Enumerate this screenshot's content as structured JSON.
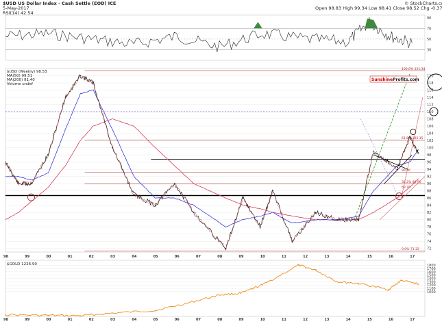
{
  "header": {
    "title": "$USD US Dollar Index - Cash Settle (EOD) ICE",
    "date": "5-May-2017",
    "rsi_legend": "RSI(14) 42.54",
    "open": "Open 98.83",
    "high": "High 99.34",
    "low": "Low 98.41",
    "close": "Close 98.52",
    "chg": "Chg -0.37 (-0.37%)",
    "credit": "© StockCharts.com"
  },
  "watermark": {
    "left": "Sunshine",
    "right": "Profits",
    "suffix": ".com"
  },
  "main_legend": [
    "$USD (Weekly) 98.53",
    "MA(50) 99.51",
    "MA(200) 91.40",
    "Volume undef"
  ],
  "gold_legend": "$GOLD 1226.90",
  "fib_labels": {
    "top": "100.0% 121.34",
    "f618": "61.8% 102.15",
    "f382": "38.2% 89.90",
    "bottom": "0.0% 71.32",
    "mid": "90.86",
    "val": "89.78"
  },
  "x_year_labels": [
    "98",
    "99",
    "00",
    "01",
    "02",
    "03",
    "04",
    "05",
    "06",
    "07",
    "08",
    "09",
    "10",
    "11",
    "12",
    "13",
    "14",
    "15",
    "16",
    "17"
  ],
  "colors": {
    "price": "#222222",
    "ma50": "#3b3bd6",
    "ma200": "#d83a5a",
    "gold": "#f08a1a",
    "rsi": "#222222",
    "rsi_fill": "#3f8a3f",
    "grid": "#d9d9d9"
  },
  "chart_data": [
    {
      "type": "line",
      "title": "RSI(14)",
      "x": [
        1998,
        2000,
        2002,
        2004,
        2006,
        2008,
        2010,
        2012,
        2014,
        2015,
        2016,
        2017
      ],
      "series": [
        {
          "values": [
            55,
            60,
            50,
            40,
            55,
            35,
            60,
            50,
            45,
            82,
            55,
            42.54
          ]
        }
      ],
      "yticks": [
        30,
        50,
        70,
        90
      ],
      "ylim": [
        10,
        95
      ]
    },
    {
      "type": "line",
      "title": "$USD (Weekly) 98.53",
      "x": [
        1998,
        1998.6,
        1999.2,
        2000,
        2000.8,
        2001.5,
        2002.1,
        2003,
        2004,
        2005,
        2005.9,
        2006.8,
        2008.3,
        2009.1,
        2009.9,
        2010.5,
        2011.4,
        2012.5,
        2013.5,
        2014.5,
        2015.2,
        2016.3,
        2016.9,
        2017.3
      ],
      "series": [
        {
          "name": "$USD",
          "values": [
            96,
            90,
            90,
            98,
            114,
            120,
            118,
            100,
            87,
            84,
            90,
            82,
            72,
            86,
            78,
            88,
            74,
            82,
            80,
            80,
            99,
            94,
            103,
            98.53
          ]
        },
        {
          "name": "MA(50)",
          "values": [
            92,
            92,
            91,
            93,
            105,
            115,
            116,
            105,
            92,
            86,
            86,
            84,
            78,
            80,
            81,
            82,
            79,
            80,
            80,
            81,
            88,
            95,
            96,
            99.51
          ]
        },
        {
          "name": "MA(200)",
          "values": [
            80,
            82,
            85,
            89,
            95,
            102,
            106,
            108,
            106,
            100,
            95,
            90,
            86,
            84,
            83,
            82,
            81,
            80,
            80,
            80,
            82,
            86,
            89,
            91.4
          ]
        }
      ],
      "yticks": [
        72,
        74,
        76,
        78,
        80,
        82,
        84,
        86,
        88,
        90,
        92,
        94,
        96,
        98,
        100,
        102,
        104,
        106,
        108,
        110,
        112,
        114,
        116,
        118,
        120
      ],
      "ylim": [
        71,
        122
      ]
    },
    {
      "type": "area",
      "title": "$GOLD 1226.90",
      "x": [
        1998,
        2000,
        2001.5,
        2003,
        2005,
        2006.5,
        2008,
        2009,
        2010,
        2011.7,
        2012.5,
        2013.5,
        2014.5,
        2015.9,
        2016.5,
        2017.3
      ],
      "series": [
        {
          "name": "$GOLD",
          "values": [
            300,
            280,
            270,
            350,
            430,
            650,
            900,
            950,
            1200,
            1800,
            1650,
            1300,
            1250,
            1060,
            1340,
            1226.9
          ]
        }
      ],
      "yticks": [
        1000,
        1100,
        1200,
        1300,
        1400,
        1500,
        1600,
        1700,
        1800
      ],
      "ylim": [
        250,
        1950
      ]
    }
  ]
}
